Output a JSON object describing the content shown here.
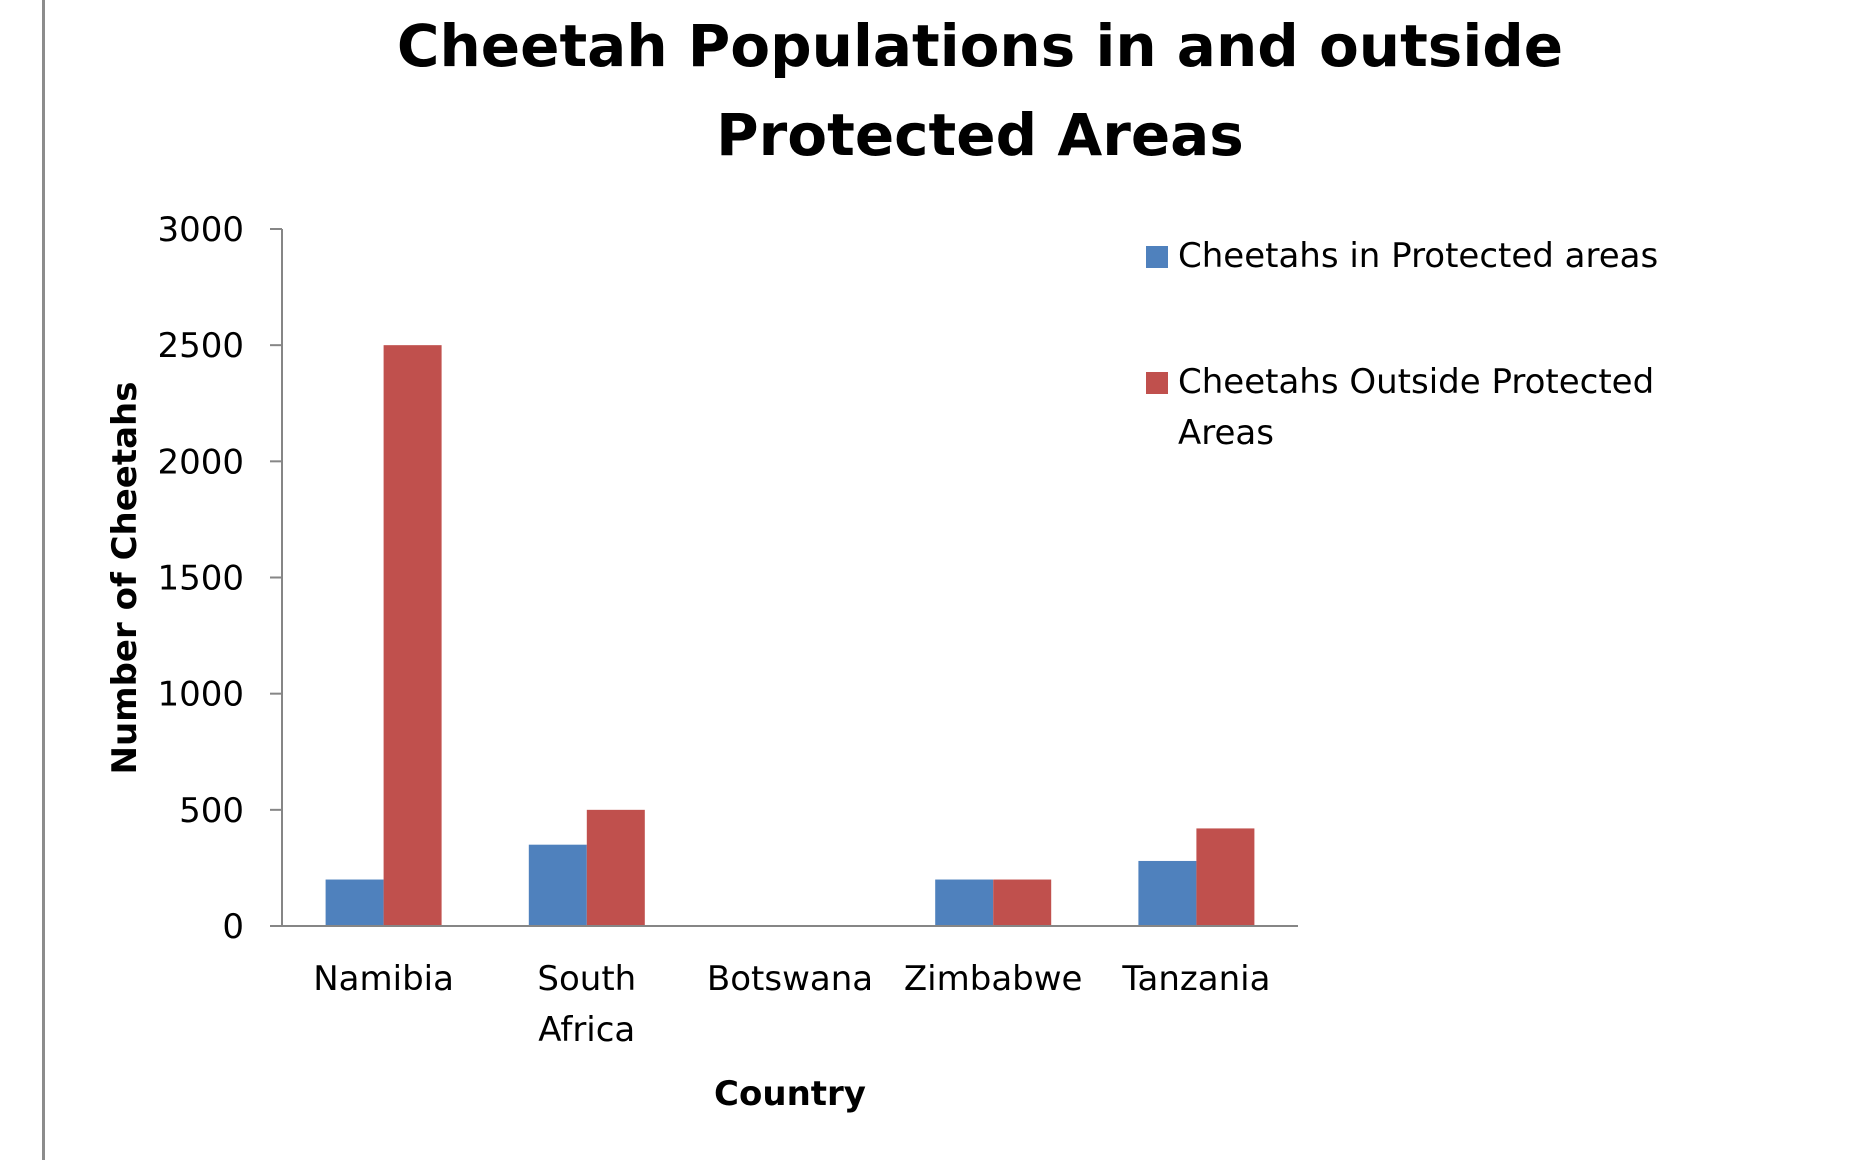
{
  "chart_data": {
    "type": "bar",
    "title": "Cheetah Populations in and outside Protected Areas",
    "xlabel": "Country",
    "ylabel": "Number of Cheetahs",
    "categories": [
      "Namibia",
      "South Africa",
      "Botswana",
      "Zimbabwe",
      "Tanzania"
    ],
    "series": [
      {
        "name": "Cheetahs in Protected areas",
        "color": "#4f81bd",
        "values": [
          200,
          350,
          0,
          200,
          280
        ]
      },
      {
        "name": "Cheetahs Outside Protected Areas",
        "color": "#c0504d",
        "values": [
          2500,
          500,
          0,
          200,
          420
        ]
      }
    ],
    "ylim": [
      0,
      3000
    ],
    "yticks": [
      0,
      500,
      1000,
      1500,
      2000,
      2500,
      3000
    ],
    "grid": false,
    "legend_position": "top-right"
  }
}
